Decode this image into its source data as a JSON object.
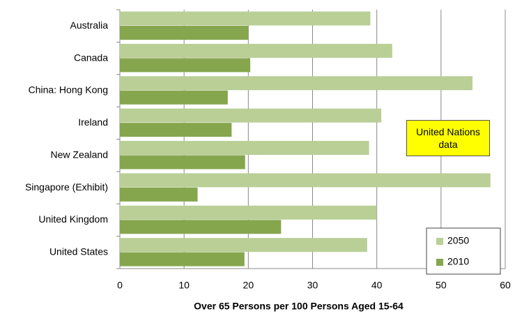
{
  "chart_data": {
    "type": "bar",
    "orientation": "horizontal",
    "x_label": "Over 65 Persons per 100 Persons Aged 15-64",
    "annotation": "United Nations data",
    "categories": [
      "Australia",
      "Canada",
      "China: Hong Kong",
      "Ireland",
      "New Zealand",
      "Singapore (Exhibit)",
      "United Kingdom",
      "United States"
    ],
    "series": [
      {
        "name": "2050",
        "color": "#b9cf96",
        "values": [
          39.0,
          42.4,
          54.9,
          40.7,
          38.8,
          57.7,
          40.0,
          38.5
        ]
      },
      {
        "name": "2010",
        "color": "#86a64e",
        "values": [
          20.0,
          20.3,
          16.8,
          17.4,
          19.5,
          12.1,
          25.1,
          19.4
        ]
      }
    ],
    "xlim": [
      0,
      60
    ],
    "xticks": [
      0,
      10,
      20,
      30,
      40,
      50,
      60
    ],
    "grid": true,
    "legend": "lower right"
  }
}
